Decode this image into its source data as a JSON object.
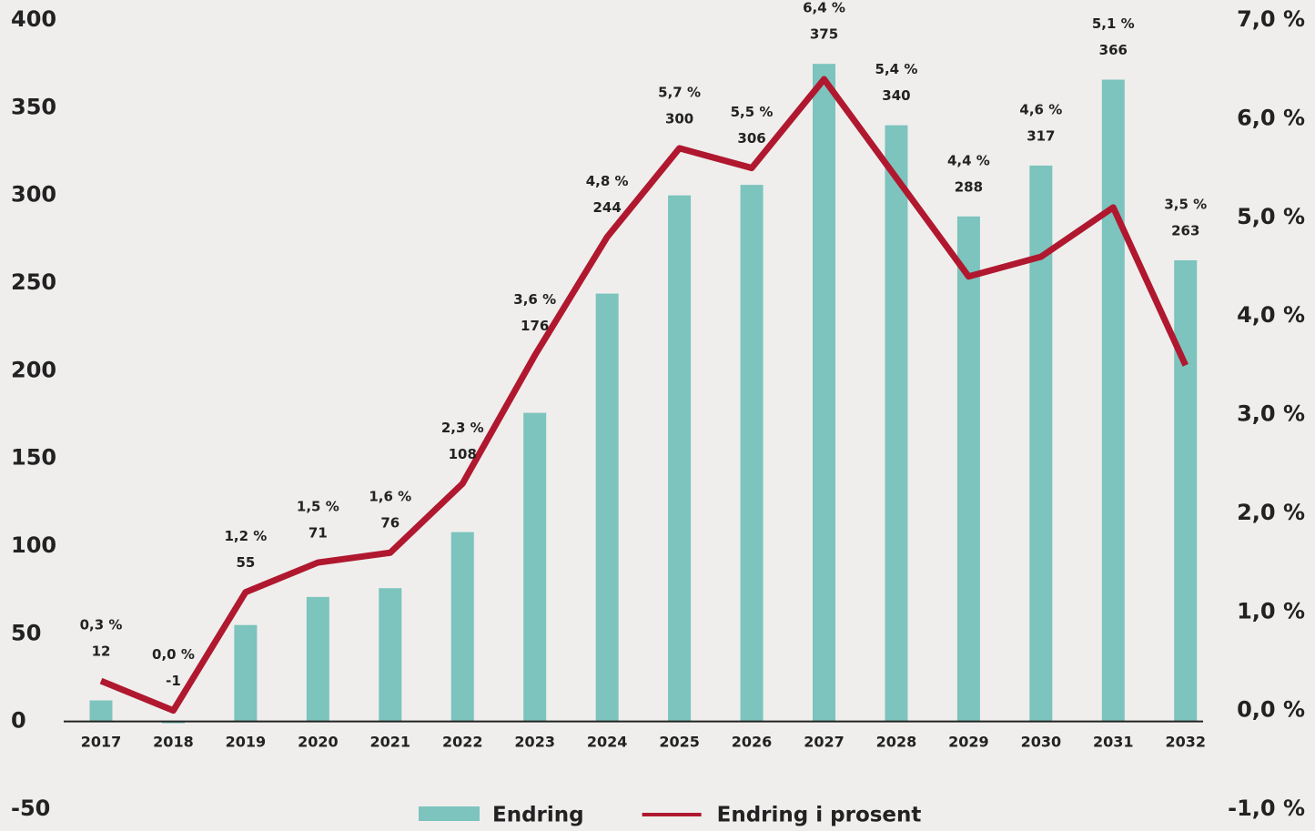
{
  "chart_data": {
    "type": "bar",
    "categories": [
      "2017",
      "2018",
      "2019",
      "2020",
      "2021",
      "2022",
      "2023",
      "2024",
      "2025",
      "2026",
      "2027",
      "2028",
      "2029",
      "2030",
      "2031",
      "2032"
    ],
    "series": [
      {
        "name": "Endring",
        "type": "bar",
        "color": "#7cc4bd",
        "values": [
          12,
          -1,
          55,
          71,
          76,
          108,
          176,
          244,
          300,
          306,
          375,
          340,
          288,
          317,
          366,
          263
        ]
      },
      {
        "name": "Endring i prosent",
        "type": "line",
        "axis": "y2",
        "color": "#b0182f",
        "values": [
          0.3,
          0.0,
          1.2,
          1.5,
          1.6,
          2.3,
          3.6,
          4.8,
          5.7,
          5.5,
          6.4,
          5.4,
          4.4,
          4.6,
          5.1,
          3.5
        ],
        "value_labels": [
          "0,3 %",
          "0,0 %",
          "1,2 %",
          "1,5 %",
          "1,6 %",
          "2,3 %",
          "3,6 %",
          "4,8 %",
          "5,7 %",
          "5,5 %",
          "6,4 %",
          "5,4 %",
          "4,4 %",
          "4,6 %",
          "5,1 %",
          "3,5 %"
        ]
      }
    ],
    "ylim": [
      -50,
      400
    ],
    "yticks": [
      -50,
      0,
      50,
      100,
      150,
      200,
      250,
      300,
      350,
      400
    ],
    "y2lim": [
      -1,
      7
    ],
    "y2ticks": [
      {
        "value": -1,
        "label": "-1,0 %"
      },
      {
        "value": 0,
        "label": "0,0 %"
      },
      {
        "value": 1,
        "label": "1,0 %"
      },
      {
        "value": 2,
        "label": "2,0 %"
      },
      {
        "value": 3,
        "label": "3,0 %"
      },
      {
        "value": 4,
        "label": "4,0 %"
      },
      {
        "value": 5,
        "label": "5,0 %"
      },
      {
        "value": 6,
        "label": "6,0 %"
      },
      {
        "value": 7,
        "label": "7,0 %"
      }
    ],
    "grid": false,
    "legend": "bottom"
  }
}
